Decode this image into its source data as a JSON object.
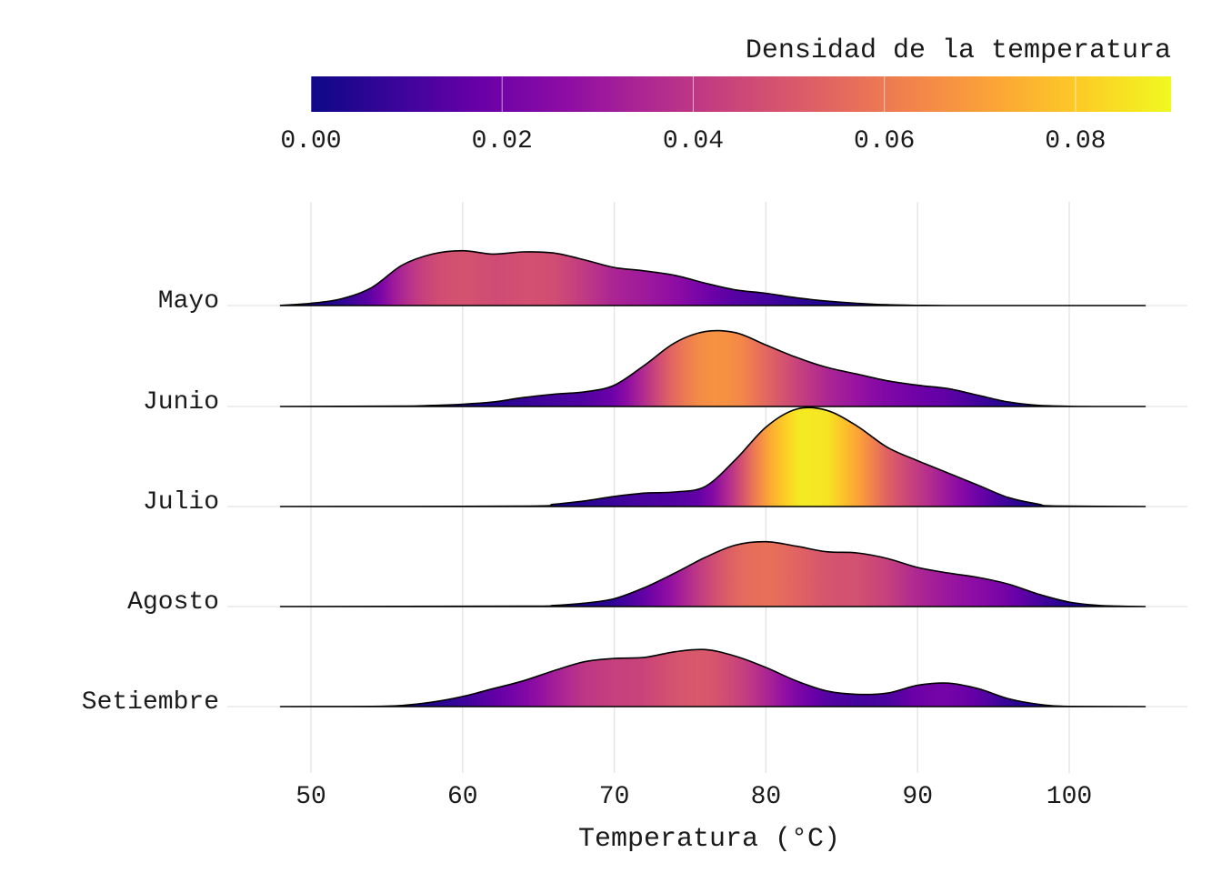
{
  "chart_data": {
    "type": "ridgeline",
    "xlabel": "Temperatura (°C)",
    "ylabel": "",
    "xlim": [
      48,
      105
    ],
    "x_ticks": [
      "50",
      "60",
      "70",
      "80",
      "90",
      "100"
    ],
    "grid": true,
    "legend": {
      "title": "Densidad de la temperatura",
      "position": "top",
      "range": [
        0,
        0.09
      ],
      "tick_labels": [
        "0.00",
        "0.02",
        "0.04",
        "0.06",
        "0.08"
      ],
      "colors": [
        "#0d0887",
        "#3b049a",
        "#6a00a8",
        "#8f0da4",
        "#b12a90",
        "#cc4778",
        "#e16462",
        "#f2844b",
        "#fca636",
        "#fcce25",
        "#f0f921"
      ]
    },
    "series": [
      {
        "name": "Mayo",
        "x": [
          48,
          50,
          52,
          54,
          56,
          58,
          60,
          62,
          64,
          66,
          68,
          70,
          72,
          74,
          76,
          78,
          80,
          82,
          84,
          86,
          88,
          90,
          92,
          94,
          96,
          98,
          100,
          102,
          105
        ],
        "density": [
          0.0002,
          0.002,
          0.006,
          0.016,
          0.036,
          0.046,
          0.049,
          0.046,
          0.048,
          0.047,
          0.041,
          0.034,
          0.031,
          0.027,
          0.02,
          0.014,
          0.011,
          0.007,
          0.004,
          0.002,
          0.0007,
          0.0002,
          0,
          0,
          0,
          0,
          0,
          0,
          0
        ]
      },
      {
        "name": "Junio",
        "x": [
          48,
          56,
          58,
          60,
          62,
          64,
          66,
          68,
          70,
          72,
          74,
          76,
          78,
          80,
          82,
          84,
          86,
          88,
          90,
          92,
          94,
          96,
          98,
          100,
          102,
          105
        ],
        "density": [
          0,
          0.0003,
          0.001,
          0.002,
          0.004,
          0.008,
          0.011,
          0.013,
          0.019,
          0.037,
          0.057,
          0.067,
          0.066,
          0.055,
          0.044,
          0.035,
          0.029,
          0.023,
          0.019,
          0.016,
          0.01,
          0.004,
          0.001,
          0.0002,
          0,
          0
        ]
      },
      {
        "name": "Julio",
        "x": [
          48,
          64,
          66,
          68,
          70,
          72,
          74,
          76,
          78,
          80,
          82,
          84,
          86,
          88,
          90,
          92,
          94,
          96,
          98,
          99,
          105
        ],
        "density": [
          0,
          0.0003,
          0.002,
          0.005,
          0.009,
          0.012,
          0.013,
          0.018,
          0.042,
          0.071,
          0.087,
          0.086,
          0.072,
          0.053,
          0.041,
          0.03,
          0.019,
          0.008,
          0.002,
          0.0005,
          0
        ]
      },
      {
        "name": "Agosto",
        "x": [
          48,
          64,
          66,
          68,
          70,
          72,
          74,
          76,
          78,
          80,
          82,
          84,
          86,
          88,
          90,
          92,
          94,
          96,
          98,
          100,
          102,
          104,
          105
        ],
        "density": [
          0,
          0.0003,
          0.001,
          0.003,
          0.007,
          0.017,
          0.03,
          0.044,
          0.055,
          0.058,
          0.054,
          0.049,
          0.048,
          0.043,
          0.035,
          0.03,
          0.026,
          0.02,
          0.011,
          0.004,
          0.001,
          0.0002,
          0
        ]
      },
      {
        "name": "Setiembre",
        "x": [
          48,
          54,
          56,
          58,
          60,
          62,
          64,
          66,
          68,
          70,
          72,
          74,
          76,
          78,
          80,
          82,
          84,
          86,
          88,
          90,
          92,
          94,
          96,
          98,
          100,
          105
        ],
        "density": [
          0,
          0.0002,
          0.001,
          0.004,
          0.009,
          0.016,
          0.023,
          0.032,
          0.04,
          0.043,
          0.044,
          0.049,
          0.051,
          0.045,
          0.035,
          0.023,
          0.014,
          0.011,
          0.012,
          0.019,
          0.021,
          0.016,
          0.007,
          0.002,
          0.0002,
          0
        ]
      }
    ]
  }
}
